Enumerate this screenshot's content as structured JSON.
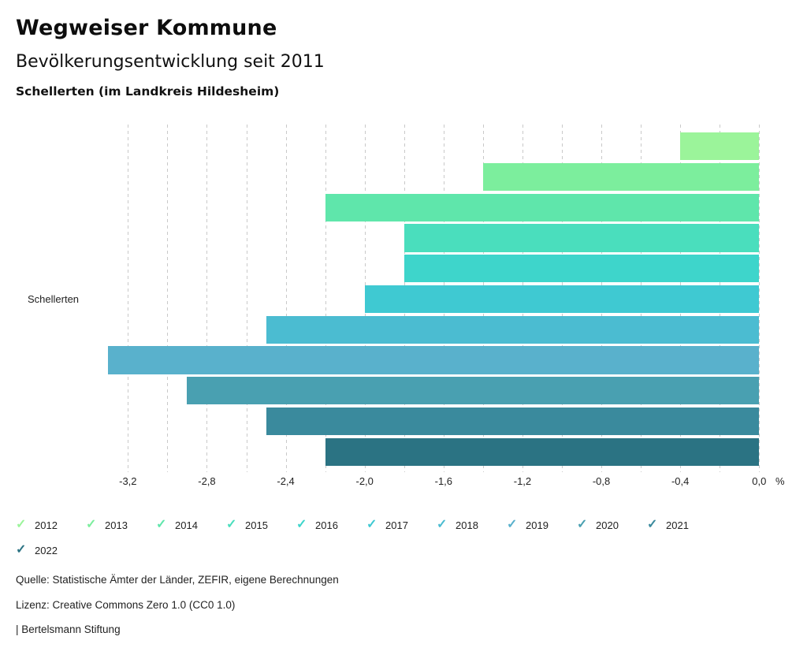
{
  "header": {
    "title": "Wegweiser Kommune",
    "subtitle": "Bevölkerungsentwicklung seit 2011",
    "location": "Schellerten (im Landkreis Hildesheim)"
  },
  "chart_data": {
    "type": "bar",
    "orientation": "horizontal",
    "title": "Bevölkerungsentwicklung seit 2011",
    "category": "Schellerten",
    "unit": "%",
    "xlim": [
      -3.3,
      0.0
    ],
    "grid": true,
    "legend_position": "bottom",
    "series": [
      {
        "name": "2012",
        "value": -0.4,
        "color": "#9bf49a"
      },
      {
        "name": "2013",
        "value": -1.4,
        "color": "#7cee9d"
      },
      {
        "name": "2014",
        "value": -2.2,
        "color": "#5fe6ab"
      },
      {
        "name": "2015",
        "value": -1.8,
        "color": "#4adebd"
      },
      {
        "name": "2016",
        "value": -1.8,
        "color": "#3ed5cb"
      },
      {
        "name": "2017",
        "value": -2.0,
        "color": "#3fc9d2"
      },
      {
        "name": "2018",
        "value": -2.5,
        "color": "#4bbcd1"
      },
      {
        "name": "2019",
        "value": -3.3,
        "color": "#59b1cc"
      },
      {
        "name": "2020",
        "value": -2.9,
        "color": "#49a0b1"
      },
      {
        "name": "2021",
        "value": -2.5,
        "color": "#3a8a9d"
      },
      {
        "name": "2022",
        "value": -2.2,
        "color": "#2b7383"
      }
    ],
    "x_ticks": [
      {
        "value": -3.2,
        "label": "-3,2"
      },
      {
        "value": -3.0,
        "label": ""
      },
      {
        "value": -2.8,
        "label": "-2,8"
      },
      {
        "value": -2.6,
        "label": ""
      },
      {
        "value": -2.4,
        "label": "-2,4"
      },
      {
        "value": -2.2,
        "label": ""
      },
      {
        "value": -2.0,
        "label": "-2,0"
      },
      {
        "value": -1.8,
        "label": ""
      },
      {
        "value": -1.6,
        "label": "-1,6"
      },
      {
        "value": -1.4,
        "label": ""
      },
      {
        "value": -1.2,
        "label": "-1,2"
      },
      {
        "value": -1.0,
        "label": ""
      },
      {
        "value": -0.8,
        "label": "-0,8"
      },
      {
        "value": -0.6,
        "label": ""
      },
      {
        "value": -0.4,
        "label": "-0,4"
      },
      {
        "value": -0.2,
        "label": ""
      },
      {
        "value": 0.0,
        "label": "0,0"
      }
    ]
  },
  "legend": {
    "check_icon": "✓"
  },
  "footer": {
    "source": "Quelle: Statistische Ämter der Länder, ZEFIR, eigene Berechnungen",
    "license": "Lizenz: Creative Commons Zero 1.0 (CC0 1.0)",
    "attribution": "| Bertelsmann Stiftung"
  }
}
